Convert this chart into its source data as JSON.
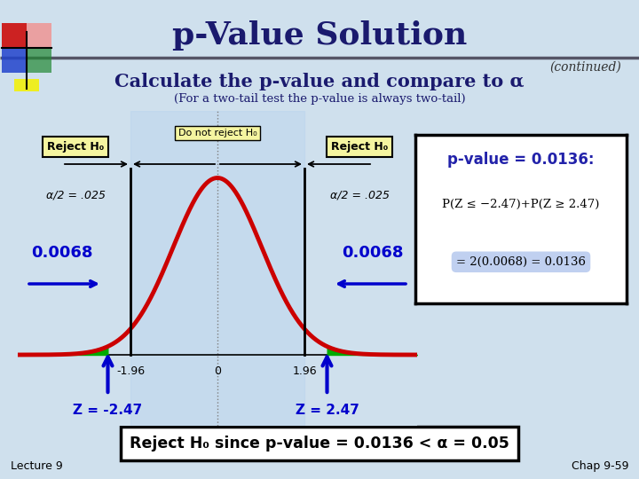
{
  "title": "p-Value Solution",
  "continued": "(continued)",
  "subtitle1": "Calculate the p-value and compare to α",
  "subtitle2": "(For a two-tail test the p-value is always two-tail)",
  "bg_color": "#cfe0ed",
  "title_color": "#1a1a6e",
  "subtitle_color": "#1a1a6e",
  "reject_label": "Reject H₀",
  "do_not_reject_label": "Do not reject H₀",
  "alpha_label": "α/2 = .025",
  "val_0068": "0.0068",
  "z_neg196": "-1.96",
  "z_pos196": "1.96",
  "z_neg247": "Z = -2.47",
  "z_pos247": "Z = 2.47",
  "zero_label": "0",
  "pvalue_box_title": "p-value = 0.0136:",
  "pvalue_box_line1": "P(Z ≤ −2.47)+P(Z ≥ 2.47)",
  "pvalue_box_line2": "= 2(0.0068) = 0.0136",
  "bottom_box": "Reject H₀ since p-value = 0.0136 < α = 0.05",
  "lecture": "Lecture 9",
  "chap": "Chap 9-59",
  "curve_color": "#cc0000",
  "fill_color": "#00aa00",
  "arrow_color": "#0000cc",
  "reject_box_color": "#f5f5a0",
  "pvalue_box_color": "#ffffff",
  "bottom_box_bg": "#ffffff",
  "highlight_color": "#c0d0f0",
  "curve_bg": "#ddeef8"
}
